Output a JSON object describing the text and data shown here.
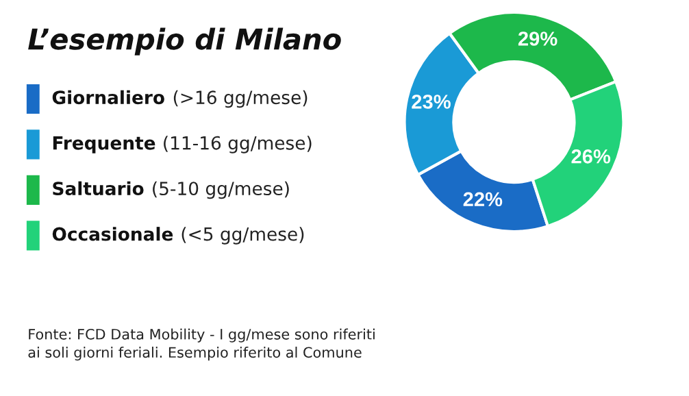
{
  "chart_data": {
    "type": "donut",
    "title": "L’esempio di Milano",
    "categories": [
      "Giornaliero (>16 gg/mese)",
      "Frequente (11-16 gg/mese)",
      "Saltuario (5-10 gg/mese)",
      "Occasionale (<5 gg/mese)"
    ],
    "values": [
      22,
      23,
      29,
      26
    ],
    "colors": [
      "#1a6cc6",
      "#1a9ad6",
      "#1db84b",
      "#22d27a"
    ],
    "value_labels": [
      "22%",
      "23%",
      "29%",
      "26%"
    ],
    "legend": "left",
    "annotations": [
      "Fonte: FCD Data Mobility - I gg/mese sono riferiti\nai soli giorni feriali. Esempio riferito al Comune"
    ]
  }
}
